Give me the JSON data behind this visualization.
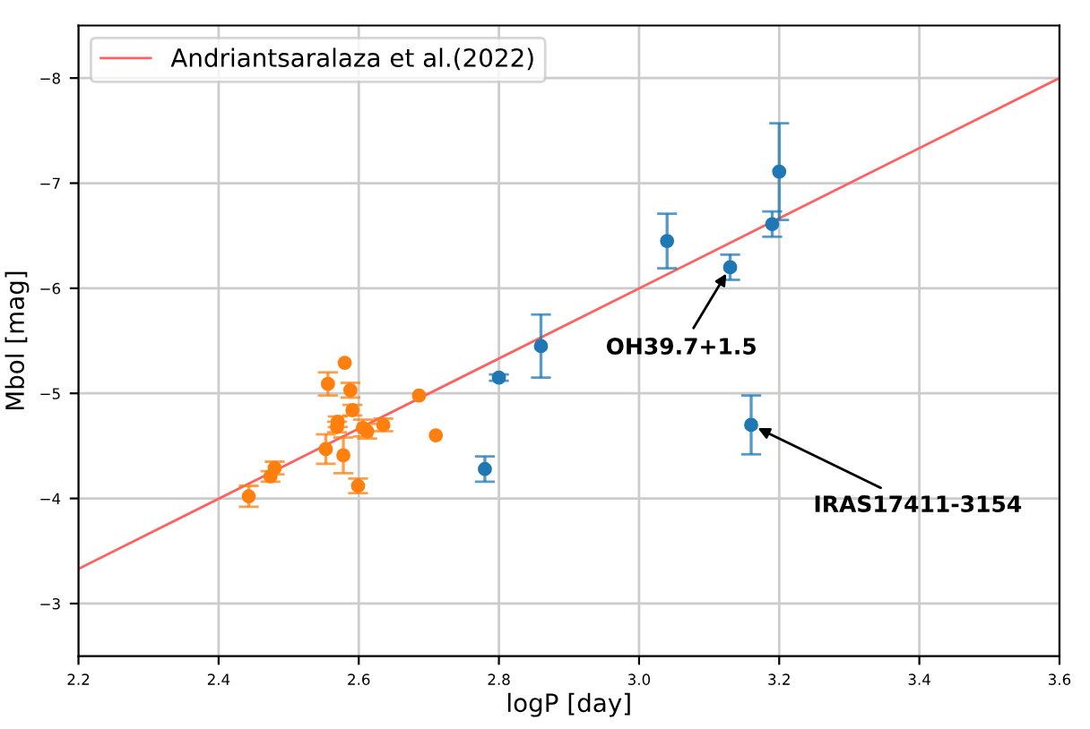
{
  "chart_data": {
    "type": "scatter",
    "xlabel": "logP [day]",
    "ylabel": "Mbol [mag]",
    "xlim": [
      2.2,
      3.6
    ],
    "ylim": [
      -2.5,
      -8.5
    ],
    "xticks": [
      2.2,
      2.4,
      2.6,
      2.8,
      {
        "value": 3,
        "label": "3.0"
      },
      3.2,
      3.4,
      3.6
    ],
    "yticks": [
      -8,
      -7,
      -6,
      -5,
      -4,
      -3
    ],
    "grid": true,
    "legend": "top left",
    "marker": "circle",
    "series": [
      {
        "type": "line",
        "name": "Andriantsaralaza et al.(2022)",
        "color": "#ff6060",
        "x": [
          2.2,
          3.6
        ],
        "values": [
          -3.33,
          -8.0
        ],
        "marker": "none"
      },
      {
        "color": "#1f77b4",
        "x": [
          2.86,
          3.04,
          3.13,
          3.19,
          3.2,
          3.16,
          2.8,
          2.78
        ],
        "values": [
          -5.45,
          -6.45,
          -6.2,
          -6.61,
          -7.11,
          -4.7,
          -5.15,
          -4.28
        ],
        "errors": [
          0.3,
          0.26,
          0.12,
          0.12,
          0.46,
          0.28,
          0.03,
          0.12
        ]
      },
      {
        "color": "#ff7f0e",
        "x": [
          2.443,
          2.474,
          2.48,
          2.553,
          2.556,
          2.569,
          2.57,
          2.578,
          2.58,
          2.588,
          2.591,
          2.599,
          2.606,
          2.612,
          2.635,
          2.686,
          2.71
        ],
        "values": [
          -4.02,
          -4.21,
          -4.29,
          -4.47,
          -5.09,
          -4.68,
          -4.73,
          -4.41,
          -5.29,
          -5.03,
          -4.84,
          -4.12,
          -4.67,
          -4.64,
          -4.7,
          -4.98,
          -4.6
        ],
        "errors": [
          0.1,
          0.05,
          0.06,
          0.14,
          0.11,
          0.05,
          0.05,
          0.17,
          null,
          0.07,
          0.05,
          0.07,
          0.08,
          0.07,
          0.06,
          null,
          null
        ]
      }
    ],
    "annotations": [
      {
        "text": "OH39.7+1.5",
        "x": 3.13,
        "y": -6.2
      },
      {
        "text": "IRAS17411-3154",
        "x": 3.16,
        "y": -4.7
      }
    ]
  }
}
